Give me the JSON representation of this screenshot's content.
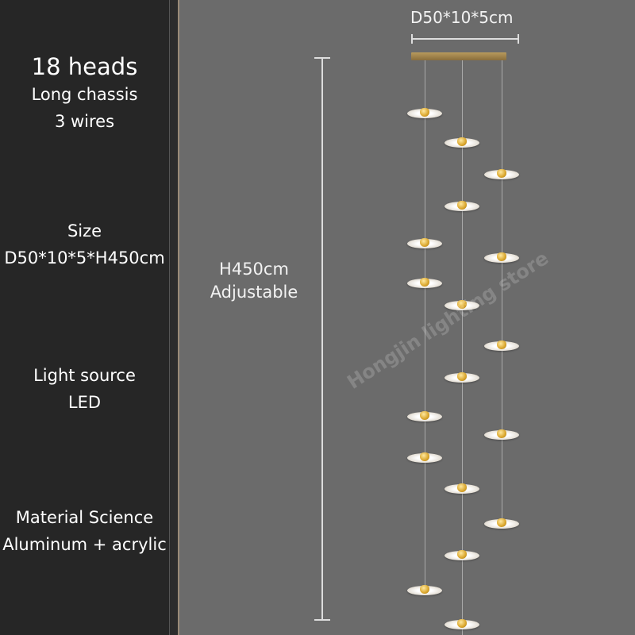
{
  "specs": {
    "heads": "18 heads",
    "chassis": "Long chassis",
    "wires": "3 wires",
    "size_label": "Size",
    "size_value": "D50*10*5*H450cm",
    "light_label": "Light source",
    "light_value": "LED",
    "material_label": "Material Science",
    "material_value": "Aluminum + acrylic"
  },
  "dimensions": {
    "top": "D50*10*5cm",
    "height": "H450cm",
    "height_note": "Adjustable"
  },
  "watermark": "Hongjin lighting store",
  "colors": {
    "panel": "#262626",
    "background": "#6b6b6b",
    "canopy": "#b89a5c"
  },
  "product": {
    "head_count": 18,
    "wire_count": 3
  }
}
